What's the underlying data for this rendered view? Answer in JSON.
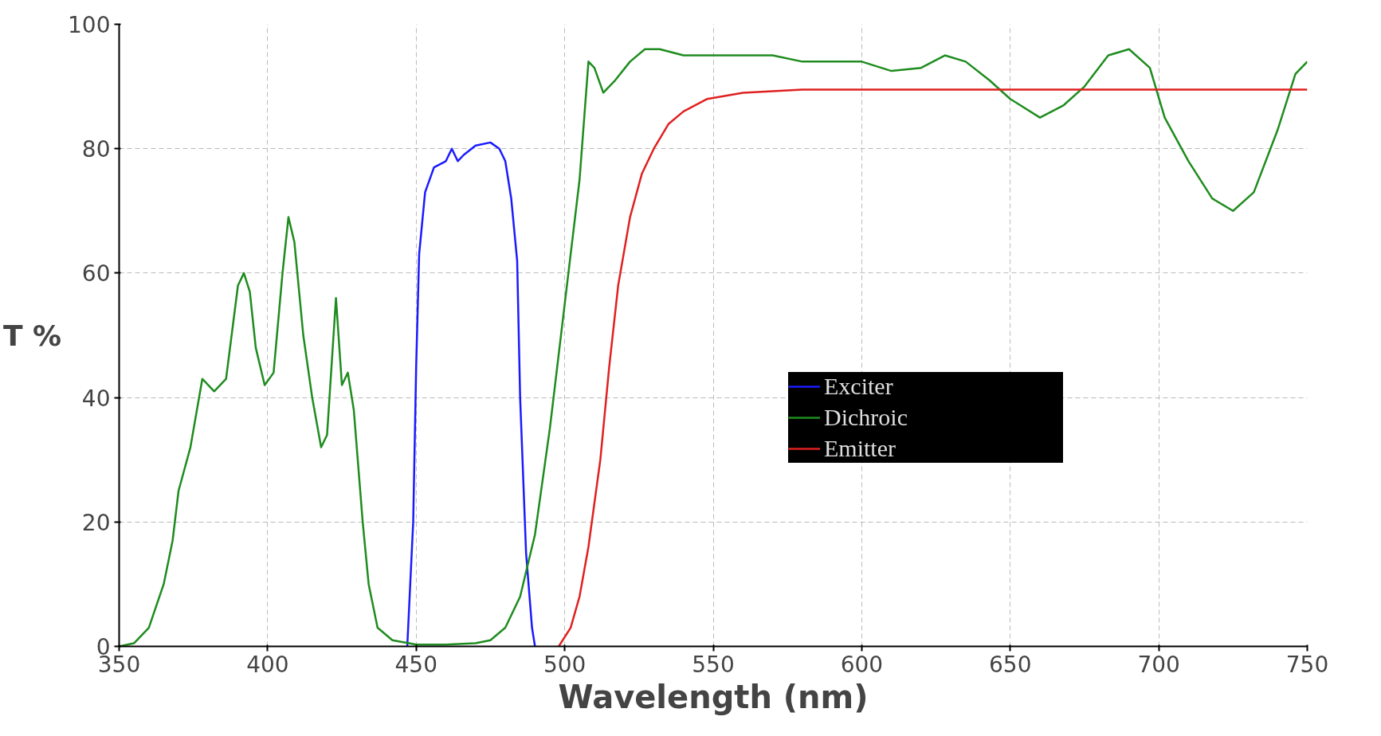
{
  "chart_data": {
    "type": "line",
    "xlabel": "Wavelength (nm)",
    "ylabel": "T %",
    "xlim": [
      350,
      750
    ],
    "ylim": [
      0,
      100
    ],
    "xticks": [
      350,
      400,
      450,
      500,
      550,
      600,
      650,
      700,
      750
    ],
    "yticks": [
      0,
      20,
      40,
      60,
      80,
      100
    ],
    "grid": true,
    "line_style": "solid",
    "legend": "right",
    "series": [
      {
        "name": "Exciter",
        "color": "#1a1aff",
        "x": [
          447,
          449,
          450,
          451,
          453,
          456,
          460,
          462,
          464,
          466,
          470,
          475,
          478,
          480,
          482,
          484,
          485,
          487,
          489,
          490
        ],
        "values": [
          0,
          20,
          45,
          63,
          73,
          77,
          78,
          80,
          78,
          79,
          80.5,
          81,
          80,
          78,
          72,
          62,
          40,
          15,
          3,
          0
        ]
      },
      {
        "name": "Dichroic",
        "color": "#1e8c1e",
        "x": [
          350,
          355,
          360,
          365,
          368,
          370,
          374,
          378,
          382,
          386,
          390,
          392,
          394,
          396,
          399,
          402,
          405,
          407,
          409,
          412,
          415,
          418,
          420,
          423,
          425,
          427,
          429,
          432,
          434,
          437,
          442,
          450,
          460,
          470,
          475,
          480,
          485,
          490,
          495,
          500,
          505,
          508,
          510,
          513,
          517,
          522,
          527,
          532,
          540,
          550,
          570,
          580,
          600,
          610,
          620,
          628,
          635,
          643,
          650,
          660,
          668,
          675,
          683,
          690,
          697,
          702,
          710,
          718,
          725,
          732,
          740,
          746,
          750
        ],
        "values": [
          0,
          0.5,
          3,
          10,
          17,
          25,
          32,
          43,
          41,
          43,
          58,
          60,
          57,
          48,
          42,
          44,
          60,
          69,
          65,
          50,
          40,
          32,
          34,
          56,
          42,
          44,
          38,
          20,
          10,
          3,
          1,
          0.3,
          0.3,
          0.5,
          1,
          3,
          8,
          18,
          35,
          55,
          75,
          94,
          93,
          89,
          91,
          94,
          96,
          96,
          95,
          95,
          95,
          94,
          94,
          92.5,
          93,
          95,
          94,
          91,
          88,
          85,
          87,
          90,
          95,
          96,
          93,
          85,
          78,
          72,
          70,
          73,
          83,
          92,
          94
        ]
      },
      {
        "name": "Emitter",
        "color": "#e02020",
        "x": [
          498,
          502,
          505,
          508,
          512,
          515,
          518,
          522,
          526,
          530,
          535,
          540,
          548,
          560,
          580,
          600,
          650,
          750
        ],
        "values": [
          0,
          3,
          8,
          16,
          30,
          45,
          58,
          69,
          76,
          80,
          84,
          86,
          88,
          89,
          89.5,
          89.5,
          89.5,
          89.5
        ]
      }
    ]
  }
}
